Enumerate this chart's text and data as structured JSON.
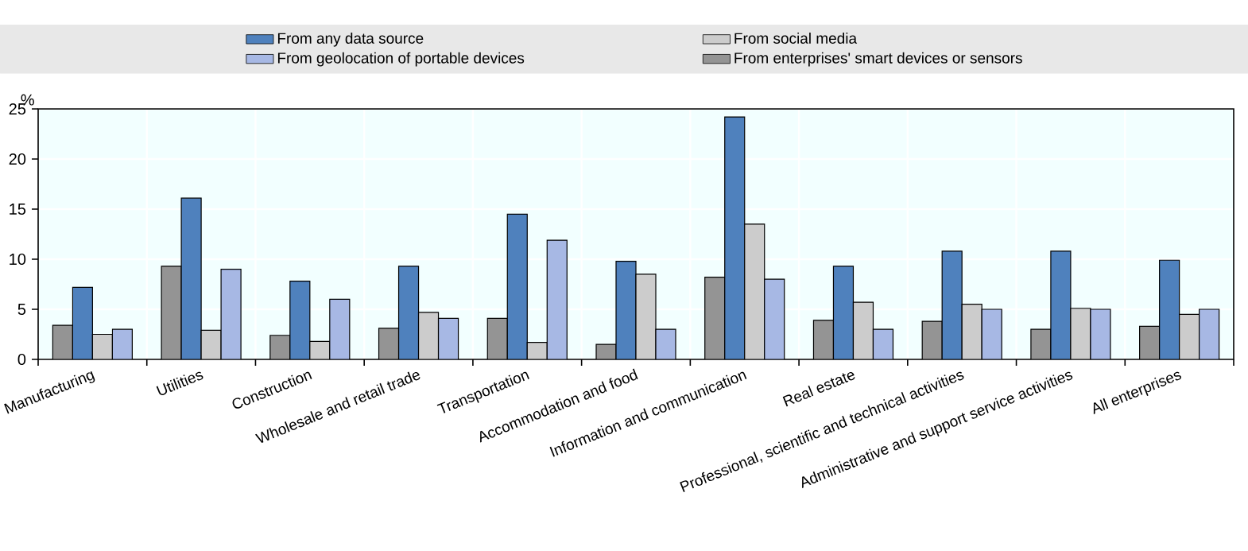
{
  "chart_data": {
    "type": "bar",
    "ylabel": "%",
    "categories": [
      "Manufacturing",
      "Utilities",
      "Construction",
      "Wholesale and retail trade",
      "Transportation",
      "Accommodation and food",
      "Information and communication",
      "Real estate",
      "Professional, scientific and technical activities",
      "Administrative and support service activities",
      "All enterprises"
    ],
    "series": [
      {
        "name": "From enterprises' smart devices or sensors",
        "color": "#949494",
        "values": [
          3.4,
          9.3,
          2.4,
          3.1,
          4.1,
          1.5,
          8.2,
          3.9,
          3.8,
          3.0,
          3.3
        ]
      },
      {
        "name": "From any data source",
        "color": "#4f81bd",
        "values": [
          7.2,
          16.1,
          7.8,
          9.3,
          14.5,
          9.8,
          24.2,
          9.3,
          10.8,
          10.8,
          9.9
        ]
      },
      {
        "name": "From social media",
        "color": "#cccccc",
        "values": [
          2.5,
          2.9,
          1.8,
          4.7,
          1.7,
          8.5,
          13.5,
          5.7,
          5.5,
          5.1,
          4.5
        ]
      },
      {
        "name": "From geolocation of portable devices",
        "color": "#a7b8e4",
        "values": [
          3.0,
          9.0,
          6.0,
          4.1,
          11.9,
          3.0,
          8.0,
          3.0,
          5.0,
          5.0,
          5.0
        ]
      }
    ],
    "ylim": [
      0,
      25
    ],
    "yticks": [
      0,
      5,
      10,
      15,
      20,
      25
    ],
    "grid": true,
    "legend": "top"
  }
}
